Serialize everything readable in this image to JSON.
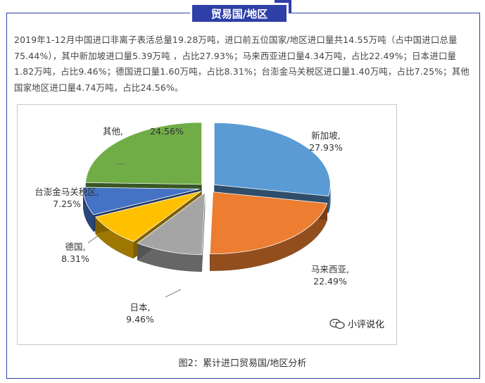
{
  "header": {
    "tag": "贸易国/地区"
  },
  "paragraph": "2019年1-12月中国进口非离子表活总量19.28万吨，进口前五位国家/地区进口量共14.55万吨（占中国进口总量75.44%），其中新加坡进口量5.39万吨 ，占比27.93%；马来西亚进口量4.34万吨，占比22.49%；日本进口量1.82万吨，占比9.46%；德国进口量1.60万吨，占比8.31%；台澎金马关税区进口量1.40万吨，占比7.25%；其他国家地区进口量4.74万吨，占比24.56%。",
  "caption": "图2：累计进口贸易国/地区分析",
  "watermark": {
    "text": "小评说化",
    "icon": "wechat-icon"
  },
  "colors": {
    "accent": "#2e3fa8"
  },
  "chart_data": {
    "type": "pie",
    "style": "3d-exploded",
    "slices": [
      {
        "label": "新加坡,",
        "percent_text": "27.93%",
        "value": 27.93,
        "color": "#5b9bd5"
      },
      {
        "label": "马来西亚,",
        "percent_text": "22.49%",
        "value": 22.49,
        "color": "#ed7d31"
      },
      {
        "label": "日本,",
        "percent_text": "9.46%",
        "value": 9.46,
        "color": "#a5a5a5"
      },
      {
        "label": "德国,",
        "percent_text": "8.31%",
        "value": 8.31,
        "color": "#ffc000"
      },
      {
        "label": "台澎金马关税区,",
        "percent_text": "7.25%",
        "value": 7.25,
        "color": "#4472c4"
      },
      {
        "label": "其他,",
        "percent_text": "24.56%",
        "value": 24.56,
        "color": "#70ad47"
      }
    ]
  }
}
